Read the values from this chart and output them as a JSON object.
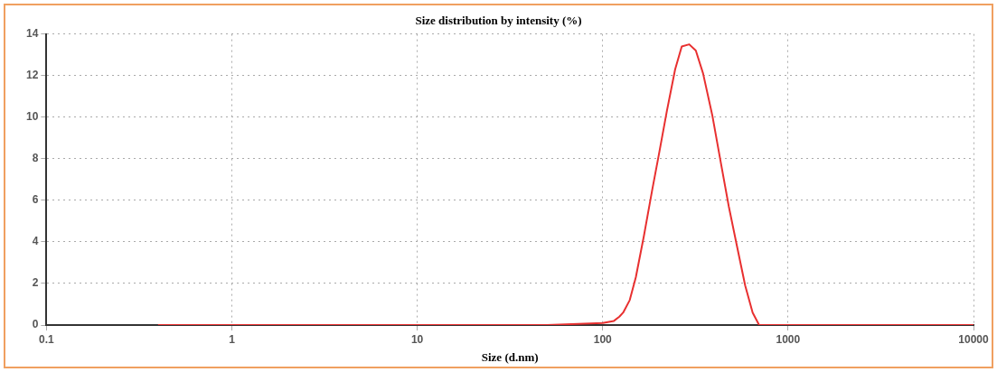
{
  "chart_data": {
    "type": "line",
    "title": "Size distribution by intensity (%)",
    "xlabel": "Size (d.nm)",
    "log": "x",
    "xlim": [
      0.1,
      10000
    ],
    "xticks": [
      0.1,
      1,
      10,
      100,
      1000,
      10000
    ],
    "ylim": [
      0,
      14
    ],
    "yticks": [
      0,
      2,
      4,
      6,
      8,
      10,
      12,
      14
    ],
    "grid": true,
    "legend": false,
    "marker": "none",
    "line_style": "solid",
    "series": [
      {
        "color": "#e83030",
        "x": [
          0.4,
          1,
          10,
          50,
          100,
          115,
          123,
          129,
          140,
          151,
          167,
          185,
          201,
          222,
          246,
          267,
          293,
          318,
          348,
          390,
          432,
          479,
          530,
          587,
          644,
          698,
          1000,
          10000
        ],
        "values": [
          0,
          0,
          0,
          0,
          0.1,
          0.2,
          0.4,
          0.6,
          1.2,
          2.3,
          4.3,
          6.5,
          8.2,
          10.3,
          12.3,
          13.4,
          13.5,
          13.2,
          12.1,
          10.1,
          7.9,
          5.7,
          3.8,
          1.9,
          0.6,
          0,
          0,
          0
        ]
      }
    ]
  }
}
